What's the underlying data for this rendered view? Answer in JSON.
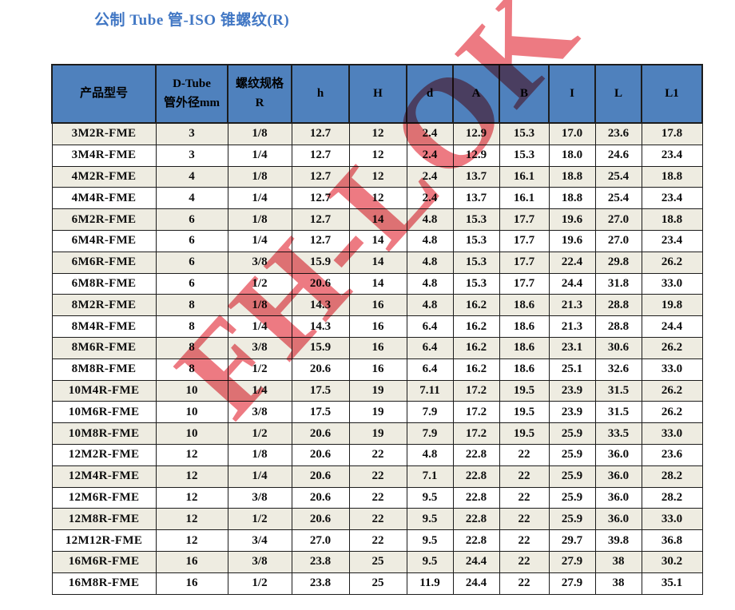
{
  "page": {
    "title": "公制 Tube 管-ISO 锥螺纹(R)"
  },
  "colors": {
    "title_color": "#4177c4",
    "header_bg": "#4f81bd",
    "stripe_bg": "#eeece1",
    "watermark_color": "rgba(232, 84, 95, 0.78)"
  },
  "watermark": {
    "text": "FH-LOK"
  },
  "table": {
    "headers": [
      "产品型号",
      "D-Tube\n管外径mm",
      "螺纹规格\nR",
      "h",
      "H",
      "d",
      "A",
      "B",
      "I",
      "L",
      "L1"
    ],
    "rows": [
      [
        "3M2R-FME",
        "3",
        "1/8",
        "12.7",
        "12",
        "2.4",
        "12.9",
        "15.3",
        "17.0",
        "23.6",
        "17.8"
      ],
      [
        "3M4R-FME",
        "3",
        "1/4",
        "12.7",
        "12",
        "2.4",
        "12.9",
        "15.3",
        "18.0",
        "24.6",
        "23.4"
      ],
      [
        "4M2R-FME",
        "4",
        "1/8",
        "12.7",
        "12",
        "2.4",
        "13.7",
        "16.1",
        "18.8",
        "25.4",
        "18.8"
      ],
      [
        "4M4R-FME",
        "4",
        "1/4",
        "12.7",
        "12",
        "2.4",
        "13.7",
        "16.1",
        "18.8",
        "25.4",
        "23.4"
      ],
      [
        "6M2R-FME",
        "6",
        "1/8",
        "12.7",
        "14",
        "4.8",
        "15.3",
        "17.7",
        "19.6",
        "27.0",
        "18.8"
      ],
      [
        "6M4R-FME",
        "6",
        "1/4",
        "12.7",
        "14",
        "4.8",
        "15.3",
        "17.7",
        "19.6",
        "27.0",
        "23.4"
      ],
      [
        "6M6R-FME",
        "6",
        "3/8",
        "15.9",
        "14",
        "4.8",
        "15.3",
        "17.7",
        "22.4",
        "29.8",
        "26.2"
      ],
      [
        "6M8R-FME",
        "6",
        "1/2",
        "20.6",
        "14",
        "4.8",
        "15.3",
        "17.7",
        "24.4",
        "31.8",
        "33.0"
      ],
      [
        "8M2R-FME",
        "8",
        "1/8",
        "14.3",
        "16",
        "4.8",
        "16.2",
        "18.6",
        "21.3",
        "28.8",
        "19.8"
      ],
      [
        "8M4R-FME",
        "8",
        "1/4",
        "14.3",
        "16",
        "6.4",
        "16.2",
        "18.6",
        "21.3",
        "28.8",
        "24.4"
      ],
      [
        "8M6R-FME",
        "8",
        "3/8",
        "15.9",
        "16",
        "6.4",
        "16.2",
        "18.6",
        "23.1",
        "30.6",
        "26.2"
      ],
      [
        "8M8R-FME",
        "8",
        "1/2",
        "20.6",
        "16",
        "6.4",
        "16.2",
        "18.6",
        "25.1",
        "32.6",
        "33.0"
      ],
      [
        "10M4R-FME",
        "10",
        "1/4",
        "17.5",
        "19",
        "7.11",
        "17.2",
        "19.5",
        "23.9",
        "31.5",
        "26.2"
      ],
      [
        "10M6R-FME",
        "10",
        "3/8",
        "17.5",
        "19",
        "7.9",
        "17.2",
        "19.5",
        "23.9",
        "31.5",
        "26.2"
      ],
      [
        "10M8R-FME",
        "10",
        "1/2",
        "20.6",
        "19",
        "7.9",
        "17.2",
        "19.5",
        "25.9",
        "33.5",
        "33.0"
      ],
      [
        "12M2R-FME",
        "12",
        "1/8",
        "20.6",
        "22",
        "4.8",
        "22.8",
        "22",
        "25.9",
        "36.0",
        "23.6"
      ],
      [
        "12M4R-FME",
        "12",
        "1/4",
        "20.6",
        "22",
        "7.1",
        "22.8",
        "22",
        "25.9",
        "36.0",
        "28.2"
      ],
      [
        "12M6R-FME",
        "12",
        "3/8",
        "20.6",
        "22",
        "9.5",
        "22.8",
        "22",
        "25.9",
        "36.0",
        "28.2"
      ],
      [
        "12M8R-FME",
        "12",
        "1/2",
        "20.6",
        "22",
        "9.5",
        "22.8",
        "22",
        "25.9",
        "36.0",
        "33.0"
      ],
      [
        "12M12R-FME",
        "12",
        "3/4",
        "27.0",
        "22",
        "9.5",
        "22.8",
        "22",
        "29.7",
        "39.8",
        "36.8"
      ],
      [
        "16M6R-FME",
        "16",
        "3/8",
        "23.8",
        "25",
        "9.5",
        "24.4",
        "22",
        "27.9",
        "38",
        "30.2"
      ],
      [
        "16M8R-FME",
        "16",
        "1/2",
        "23.8",
        "25",
        "11.9",
        "24.4",
        "22",
        "27.9",
        "38",
        "35.1"
      ]
    ]
  }
}
